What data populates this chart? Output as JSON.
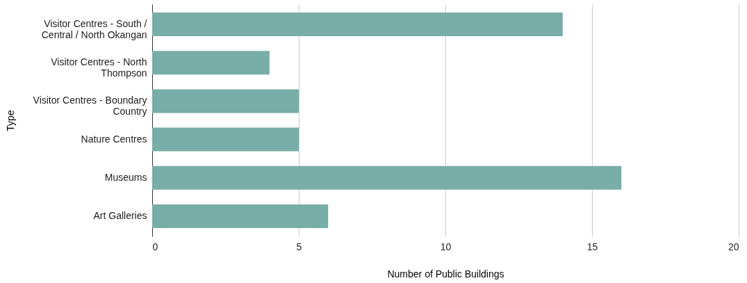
{
  "chart_data": {
    "type": "bar",
    "orientation": "horizontal",
    "xlabel": "Number of Public Buildings",
    "ylabel": "Type",
    "categories": [
      "Visitor Centres - South / Central / North Okangan",
      "Visitor Centres - North Thompson",
      "Visitor Centres - Boundary Country",
      "Nature Centres",
      "Museums",
      "Art Galleries"
    ],
    "values": [
      14,
      4,
      5,
      5,
      16,
      6
    ],
    "color": "#79ada8",
    "xlim": [
      0,
      20
    ],
    "xticks": [
      0,
      5,
      10,
      15,
      20
    ],
    "grid": "x"
  }
}
